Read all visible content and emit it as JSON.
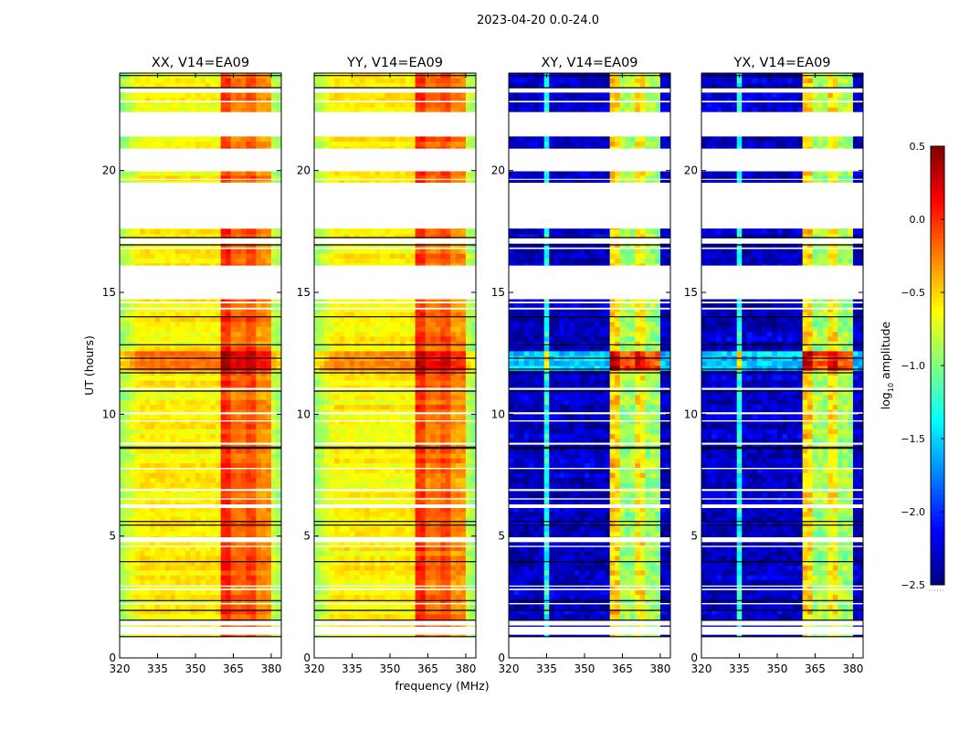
{
  "chart_data": {
    "type": "heatmap",
    "title": "2023-04-20 0.0-24.0",
    "xlabel": "frequency (MHz)",
    "ylabel": "UT (hours)",
    "xlim": [
      320,
      384
    ],
    "ylim": [
      0,
      24
    ],
    "xticks": [
      "320",
      "335",
      "350",
      "365",
      "380"
    ],
    "xtick_values": [
      320,
      335,
      350,
      365,
      380
    ],
    "yticks": [
      "0",
      "5",
      "10",
      "15",
      "20"
    ],
    "ytick_values": [
      0,
      5,
      10,
      15,
      20
    ],
    "colorbar": {
      "label_main": "log",
      "label_sub": "10",
      "label_rest": " amplitude",
      "range": [
        -2.5,
        0.5
      ],
      "ticks": [
        "0.5",
        "0.0",
        "−0.5",
        "−1.0",
        "−1.5",
        "−2.0",
        "−2.5"
      ],
      "tick_values": [
        0.5,
        0.0,
        -0.5,
        -1.0,
        -1.5,
        -2.0,
        -2.5
      ],
      "colormap": "jet"
    },
    "panels": [
      {
        "title": "XX, V14=EA09",
        "kind": "parallel"
      },
      {
        "title": "YY, V14=EA09",
        "kind": "parallel"
      },
      {
        "title": "XY, V14=EA09",
        "kind": "cross"
      },
      {
        "title": "YX, V14=EA09",
        "kind": "cross"
      }
    ],
    "model": {
      "parallel": {
        "base": -0.6,
        "edge": -0.95,
        "rfi_bands": [
          [
            361,
            364,
            0.0
          ],
          [
            365,
            369,
            -0.2
          ],
          [
            370,
            374,
            -0.1
          ],
          [
            375,
            379,
            -0.3
          ]
        ],
        "hot_band_hours": [
          11.6,
          12.4
        ],
        "hot_boost": 0.35
      },
      "cross": {
        "base": -2.3,
        "edge": -2.3,
        "rfi_bands": [
          [
            361,
            364,
            -0.5
          ],
          [
            365,
            369,
            -0.9
          ],
          [
            370,
            374,
            -0.6
          ],
          [
            375,
            379,
            -0.9
          ]
        ],
        "line_freq": 335,
        "line_value": -1.3,
        "hot_band_hours": [
          11.6,
          12.4
        ],
        "hot_boost": 0.8
      }
    },
    "flagged_gaps_hours": [
      [
        0,
        0.87
      ],
      [
        0.95,
        1.28
      ],
      [
        1.33,
        1.52
      ],
      [
        2.2,
        2.25
      ],
      [
        2.78,
        2.84
      ],
      [
        2.92,
        2.97
      ],
      [
        4.55,
        4.6
      ],
      [
        4.75,
        4.95
      ],
      [
        6.15,
        6.3
      ],
      [
        6.5,
        6.55
      ],
      [
        6.85,
        6.93
      ],
      [
        7.75,
        7.8
      ],
      [
        8.75,
        8.83
      ],
      [
        9.7,
        9.75
      ],
      [
        10.0,
        10.08
      ],
      [
        11.0,
        11.08
      ],
      [
        14.3,
        14.37
      ],
      [
        14.55,
        14.62
      ],
      [
        14.72,
        16.1
      ],
      [
        16.78,
        16.84
      ],
      [
        17.0,
        17.22
      ],
      [
        17.62,
        19.5
      ],
      [
        19.62,
        19.66
      ],
      [
        19.97,
        20.9
      ],
      [
        21.4,
        22.4
      ],
      [
        22.8,
        22.86
      ],
      [
        23.2,
        23.38
      ]
    ],
    "flag_lines_hours": [
      0.87,
      1.55,
      1.95,
      2.35,
      3.95,
      5.45,
      5.6,
      8.6,
      8.65,
      10.95,
      11.7,
      11.85,
      12.3,
      12.85,
      14.0,
      16.95,
      17.25,
      23.4,
      23.9
    ]
  }
}
